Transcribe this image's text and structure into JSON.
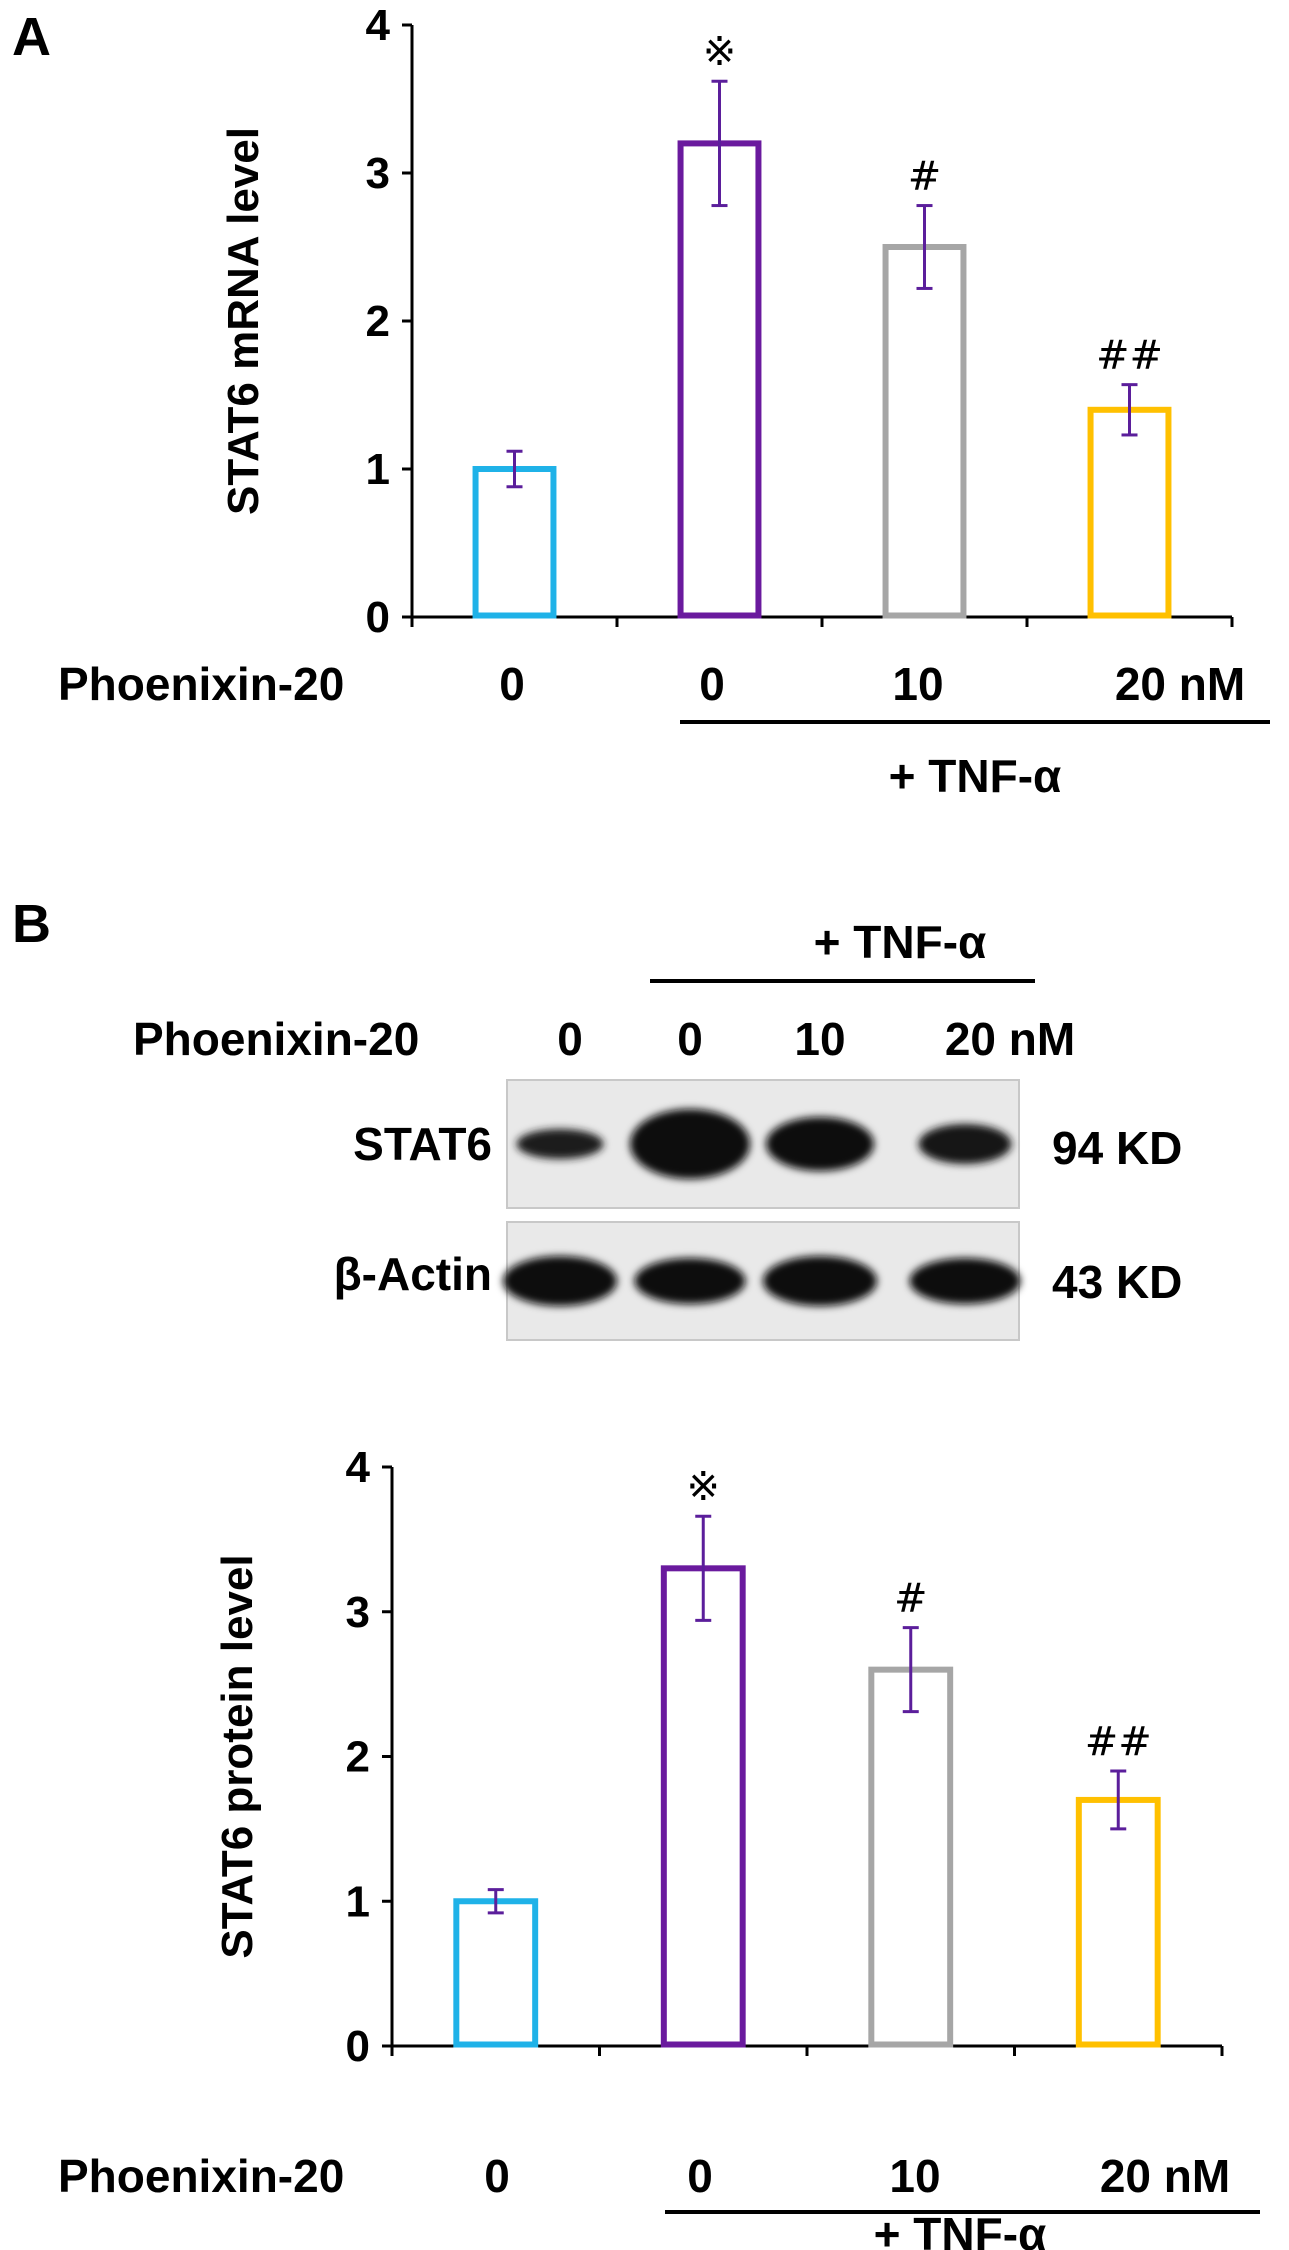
{
  "panel_labels": {
    "a": "A",
    "b": "B"
  },
  "panel_a": {
    "x_row_label": "Phoenixin-20",
    "treatment_label": "+ TNF-α"
  },
  "panel_b": {
    "treatment_label": "+ TNF-α",
    "blot_row_label": "Phoenixin-20",
    "lane_labels": [
      "0",
      "0",
      "10",
      "20 nM"
    ],
    "band_rows": [
      {
        "protein": "STAT6",
        "size": "94 KD",
        "intensity": [
          0.45,
          1.0,
          0.8,
          0.55
        ]
      },
      {
        "protein": "β-Actin",
        "size": "43 KD",
        "intensity": [
          0.9,
          0.85,
          0.9,
          0.85
        ]
      }
    ],
    "x_row_label": "Phoenixin-20",
    "treatment_label_bottom": "+ TNF-α"
  },
  "chart_data": [
    {
      "type": "bar",
      "title": "",
      "ylabel": "STAT6 mRNA level",
      "categories": [
        "0",
        "0",
        "10",
        "20 nM"
      ],
      "values": [
        1.0,
        3.2,
        2.5,
        1.4
      ],
      "errors": [
        0.12,
        0.42,
        0.28,
        0.17
      ],
      "annotations": [
        "",
        "※",
        "#",
        "##"
      ],
      "bar_colors": [
        "#1fb2e8",
        "#6a1a9e",
        "#a6a6a6",
        "#ffc000"
      ],
      "error_color": "#5b1e9b",
      "ylim": [
        0,
        4
      ],
      "yticks": [
        0,
        1,
        2,
        3,
        4
      ],
      "grid": false
    },
    {
      "type": "bar",
      "title": "",
      "ylabel": "STAT6 protein level",
      "categories": [
        "0",
        "0",
        "10",
        "20 nM"
      ],
      "values": [
        1.0,
        3.3,
        2.6,
        1.7
      ],
      "errors": [
        0.08,
        0.36,
        0.29,
        0.2
      ],
      "annotations": [
        "",
        "※",
        "#",
        "##"
      ],
      "bar_colors": [
        "#1fb2e8",
        "#6a1a9e",
        "#a6a6a6",
        "#ffc000"
      ],
      "error_color": "#5b1e9b",
      "ylim": [
        0,
        4
      ],
      "yticks": [
        0,
        1,
        2,
        3,
        4
      ],
      "grid": false
    }
  ]
}
